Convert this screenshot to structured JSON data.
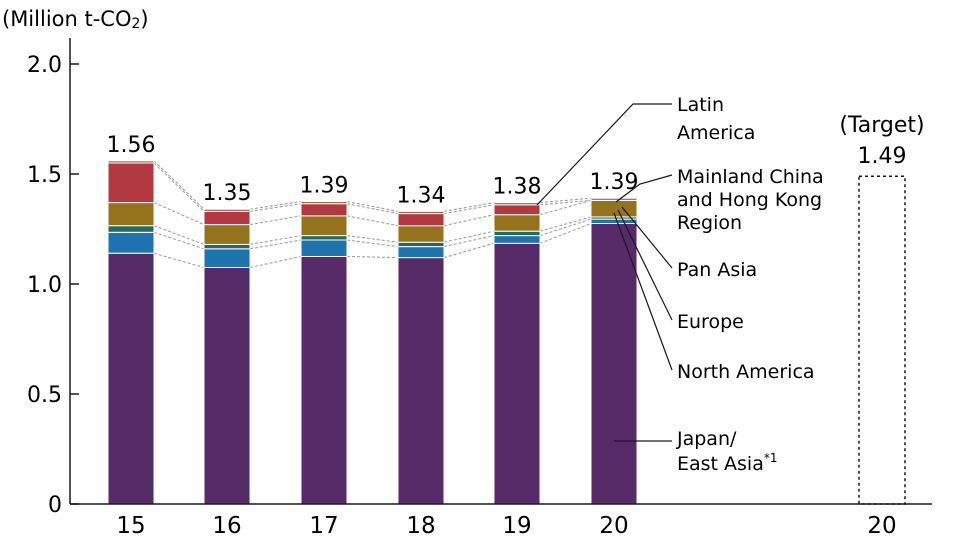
{
  "chart_data": {
    "type": "bar",
    "stacked": true,
    "unit_label": "(Million t-CO",
    "unit_subscript": "2",
    "unit_close": ")",
    "yticks": [
      "0",
      "0.5",
      "1.0",
      "1.5",
      "2.0"
    ],
    "ytick_values": [
      0,
      0.5,
      1.0,
      1.5,
      2.0
    ],
    "ylim": [
      0,
      2.1
    ],
    "categories": [
      "15",
      "16",
      "17",
      "18",
      "19",
      "20"
    ],
    "totals": [
      "1.56",
      "1.35",
      "1.39",
      "1.34",
      "1.38",
      "1.39"
    ],
    "series": [
      {
        "name": "Japan/ East Asia*1",
        "color": "#572b68",
        "values": [
          1.14,
          1.075,
          1.125,
          1.12,
          1.185,
          1.275
        ]
      },
      {
        "name": "North America",
        "color": "#1f73ae",
        "values": [
          0.095,
          0.085,
          0.075,
          0.05,
          0.035,
          0.02
        ]
      },
      {
        "name": "Europe",
        "color": "#1f6b67",
        "values": [
          0.03,
          0.02,
          0.02,
          0.02,
          0.02,
          0.01
        ]
      },
      {
        "name": "Pan Asia",
        "color": "#94731c",
        "values": [
          0.105,
          0.09,
          0.09,
          0.075,
          0.075,
          0.075
        ]
      },
      {
        "name": "Mainland China and Hong Kong Region",
        "color": "#b2393f",
        "values": [
          0.18,
          0.06,
          0.055,
          0.055,
          0.045,
          0.0
        ]
      },
      {
        "name": "Latin America",
        "color": "#a5674c",
        "values": [
          0.01,
          0.01,
          0.01,
          0.01,
          0.01,
          0.01
        ]
      }
    ],
    "target": {
      "label": "(Target)",
      "value": 1.49,
      "value_label": "1.49",
      "category": "20"
    },
    "legend": {
      "latin": [
        "Latin",
        "America"
      ],
      "china": [
        "Mainland China",
        "and Hong Kong",
        "Region"
      ],
      "pan_asia": [
        "Pan Asia"
      ],
      "europe": [
        "Europe"
      ],
      "north_america": [
        "North America"
      ],
      "japan": [
        "Japan/",
        "East Asia"
      ],
      "japan_sup": "*1"
    }
  }
}
